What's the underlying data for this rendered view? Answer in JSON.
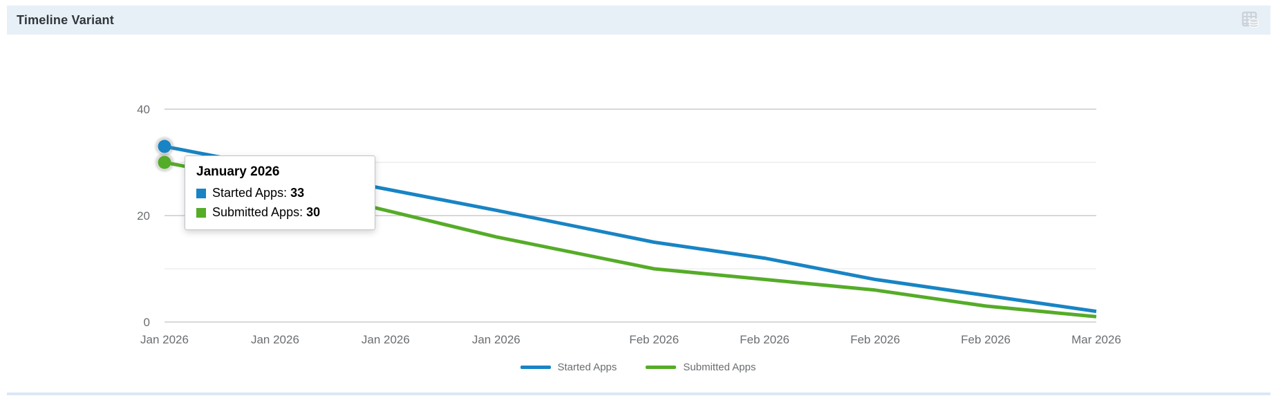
{
  "header": {
    "title": "Timeline Variant",
    "icon": "table-view-icon"
  },
  "chart_data": {
    "type": "line",
    "title": "Timeline Variant",
    "x_axis": {
      "tick_labels": [
        "Jan 2026",
        "Jan 2026",
        "Jan 2026",
        "Jan 2026",
        "Feb 2026",
        "Feb 2026",
        "Feb 2026",
        "Feb 2026",
        "Mar 2026"
      ],
      "day_offsets": [
        0,
        7,
        14,
        21,
        31,
        38,
        45,
        52,
        59
      ]
    },
    "y_axis": {
      "ylim": [
        0,
        40
      ],
      "major_ticks": [
        0,
        20,
        40
      ],
      "minor_ticks": [
        10,
        30
      ],
      "grid": true
    },
    "series": [
      {
        "name": "Started Apps",
        "color": "#1884c4",
        "values": [
          33,
          29,
          25,
          21,
          15,
          12,
          8,
          5,
          2
        ]
      },
      {
        "name": "Submitted Apps",
        "color": "#55ac28",
        "values": [
          30,
          26,
          21,
          16,
          10,
          8,
          6,
          3,
          1
        ]
      }
    ],
    "legend_position": "bottom"
  },
  "tooltip": {
    "title": "January 2026",
    "rows": [
      {
        "label": "Started Apps: ",
        "value": "33",
        "color": "#1884c4"
      },
      {
        "label": "Submitted Apps: ",
        "value": "30",
        "color": "#55ac28"
      }
    ]
  },
  "colors": {
    "header_bg": "#e7eff7",
    "grid_major": "#cccccc",
    "grid_minor": "#ededed",
    "axis_text": "#6a6d70",
    "icon_gray": "#ccd2d8"
  }
}
